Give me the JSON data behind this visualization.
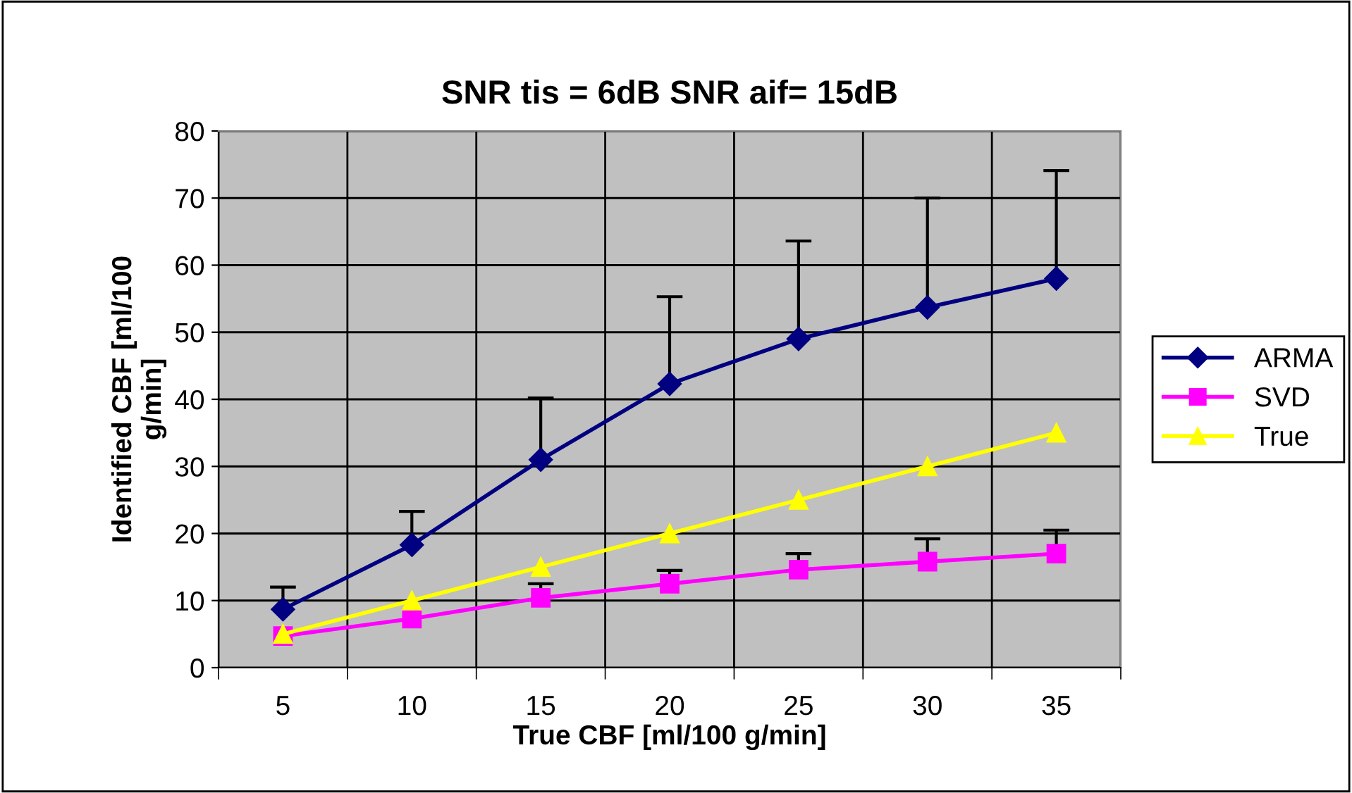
{
  "chart_data": {
    "type": "line",
    "title": "SNR tis = 6dB SNR aif= 15dB",
    "xlabel": "True CBF [ml/100 g/min]",
    "ylabel": "Identified CBF [ml/100\ng/min]",
    "categories": [
      "5",
      "10",
      "15",
      "20",
      "25",
      "30",
      "35"
    ],
    "series": [
      {
        "name": "ARMA",
        "color": "#000080",
        "marker": "diamond",
        "values": [
          8.7,
          18.3,
          31,
          42.3,
          49,
          53.7,
          58
        ],
        "errors": [
          [
            8.7,
            12
          ],
          [
            18.3,
            23.3
          ],
          [
            31,
            40.2
          ],
          [
            42.3,
            55.3
          ],
          [
            49,
            63.6
          ],
          [
            53.7,
            70
          ],
          [
            58,
            74.1
          ]
        ]
      },
      {
        "name": "SVD",
        "color": "#ff00ff",
        "marker": "square",
        "values": [
          4.7,
          7.3,
          10.4,
          12.5,
          14.6,
          15.8,
          17
        ],
        "errors": [
          null,
          null,
          [
            10.4,
            12.5
          ],
          [
            12.5,
            14.5
          ],
          [
            14.6,
            17
          ],
          [
            15.8,
            19.2
          ],
          [
            17,
            20.5
          ]
        ]
      },
      {
        "name": "True",
        "color": "#ffff00",
        "marker": "triangle",
        "values": [
          5,
          10,
          15,
          20,
          25,
          30,
          35
        ]
      }
    ],
    "ylim": [
      0,
      80
    ],
    "yticks": [
      0,
      10,
      20,
      30,
      40,
      50,
      60,
      70,
      80
    ],
    "grid": true,
    "legend": "right"
  }
}
